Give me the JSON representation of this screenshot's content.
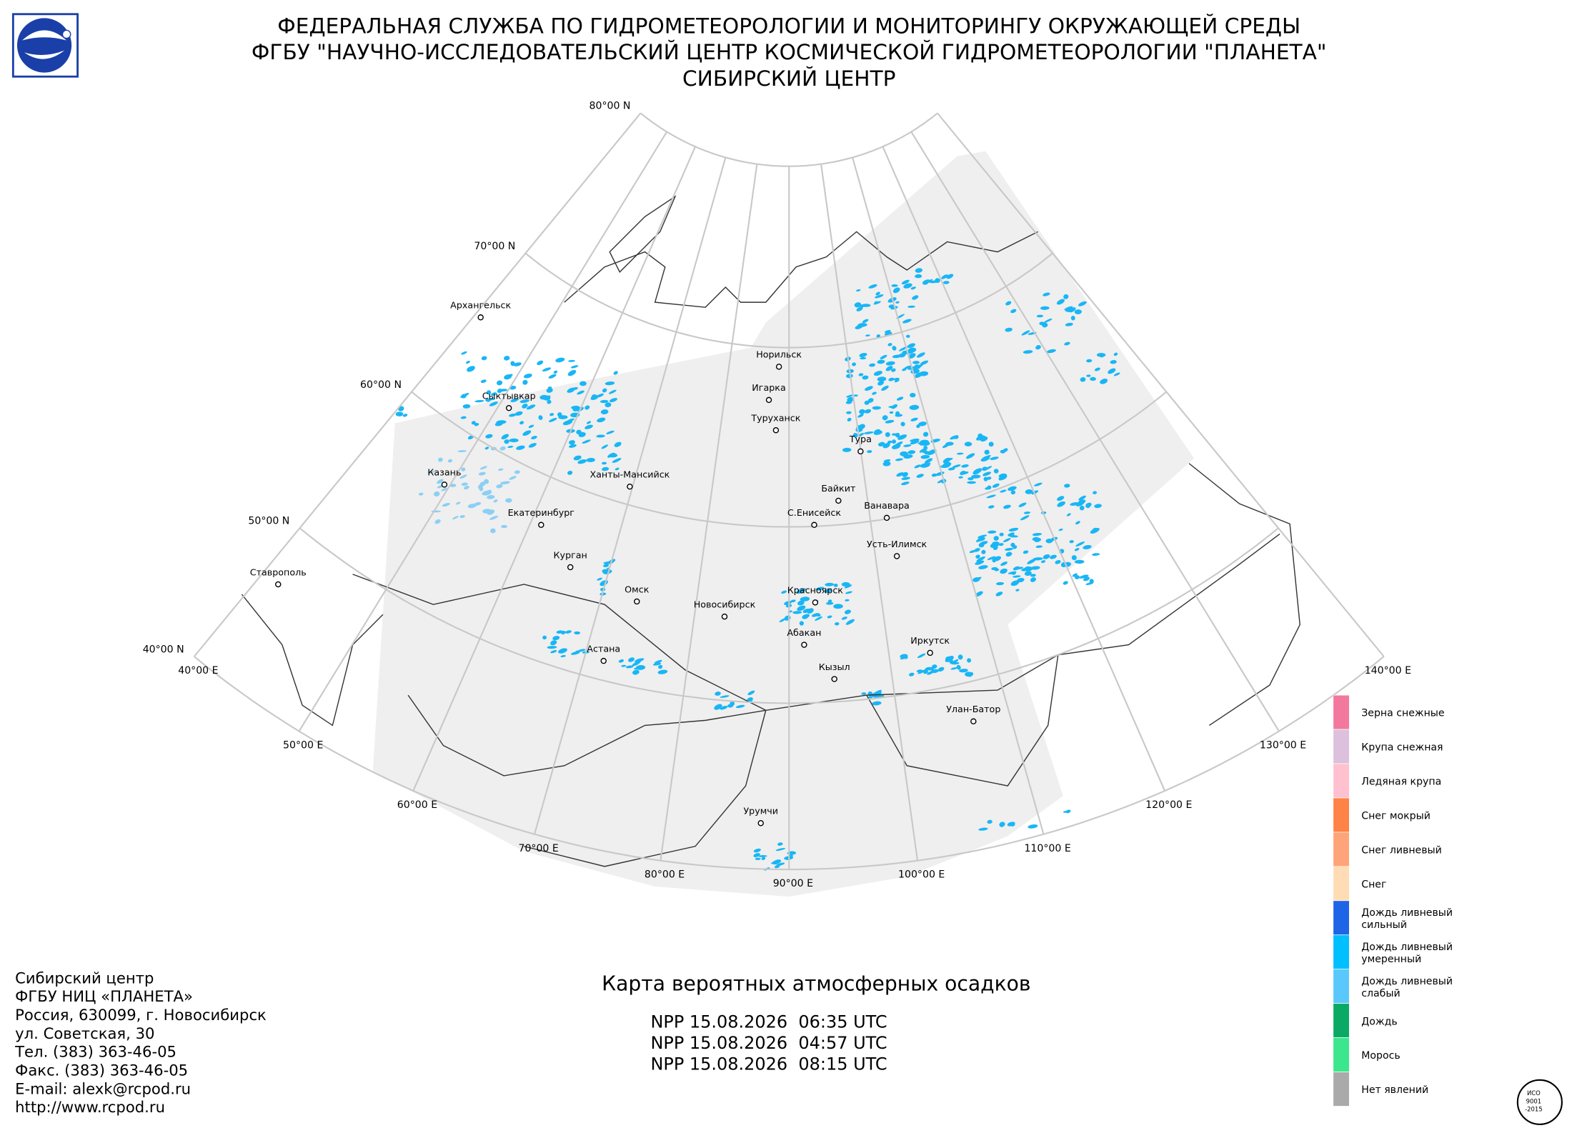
{
  "header": {
    "lines": [
      "ФЕДЕРАЛЬНАЯ СЛУЖБА ПО ГИДРОМЕТЕОРОЛОГИИ И МОНИТОРИНГУ ОКРУЖАЮЩЕЙ СРЕДЫ",
      "ФГБУ \"НАУЧНО-ИССЛЕДОВАТЕЛЬСКИЙ ЦЕНТР КОСМИЧЕСКОЙ ГИДРОМЕТЕОРОЛОГИИ \"ПЛАНЕТА\"",
      "СИБИРСКИЙ ЦЕНТР"
    ]
  },
  "graticule": {
    "latitude_labels": [
      "80°00 N",
      "70°00 N",
      "60°00 N",
      "50°00 N",
      "40°00 N"
    ],
    "longitude_labels": [
      "40°00 E",
      "50°00 E",
      "60°00 E",
      "70°00 E",
      "80°00 E",
      "90°00 E",
      "100°00 E",
      "110°00 E",
      "120°00 E",
      "130°00 E",
      "140°00 E"
    ]
  },
  "cities": [
    "Архангельск",
    "Сыктывкар",
    "Казань",
    "Ханты-Мансийск",
    "Екатеринбург",
    "Ставрополь",
    "Курган",
    "Омск",
    "Новосибирск",
    "Астана",
    "Норильск",
    "Игарка",
    "Туруханск",
    "Тура",
    "Байкит",
    "Ванавара",
    "С.Енисейск",
    "Усть-Илимск",
    "Красноярск",
    "Абакан",
    "Кызыл",
    "Иркутск",
    "Улан-Батор",
    "Урумчи"
  ],
  "legend": [
    {
      "lines": [
        "Зерна снежные"
      ],
      "color": "#f2789e"
    },
    {
      "lines": [
        "Крупа снежная"
      ],
      "color": "#dcc0dc"
    },
    {
      "lines": [
        "Ледяная крупа"
      ],
      "color": "#ffc0d0"
    },
    {
      "lines": [
        "Снег мокрый"
      ],
      "color": "#ff8246"
    },
    {
      "lines": [
        "Снег ливневый"
      ],
      "color": "#ffa478"
    },
    {
      "lines": [
        "Снег"
      ],
      "color": "#ffdcb4"
    },
    {
      "lines": [
        "Дождь ливневый",
        "сильный"
      ],
      "color": "#1e64e6"
    },
    {
      "lines": [
        "Дождь ливневый",
        "умеренный"
      ],
      "color": "#00bfff"
    },
    {
      "lines": [
        "Дождь ливневый",
        "слабый"
      ],
      "color": "#5ac8fa"
    },
    {
      "lines": [
        "Дождь"
      ],
      "color": "#0aaa64"
    },
    {
      "lines": [
        "Морось"
      ],
      "color": "#3ce68c"
    },
    {
      "lines": [
        "Нет явлений"
      ],
      "color": "#aaaaaa"
    }
  ],
  "footer": {
    "contacts": [
      "Сибирский центр",
      "ФГБУ НИЦ «ПЛАНЕТА»",
      "Россия, 630099, г. Новосибирск",
      "ул. Советская, 30",
      "Тел. (383) 363-46-05",
      "Факс. (383) 363-46-05",
      "E-mail: alexk@rcpod.ru",
      "http://www.rcpod.ru"
    ],
    "title": "Карта вероятных атмосферных осадков",
    "passes": [
      "NPP 15.08.2026  06:35 UTC",
      "NPP 15.08.2026  04:57 UTC",
      "NPP 15.08.2026  08:15 UTC"
    ]
  },
  "iso": {
    "lines": [
      "ИСО",
      "9001",
      "-2015"
    ]
  }
}
